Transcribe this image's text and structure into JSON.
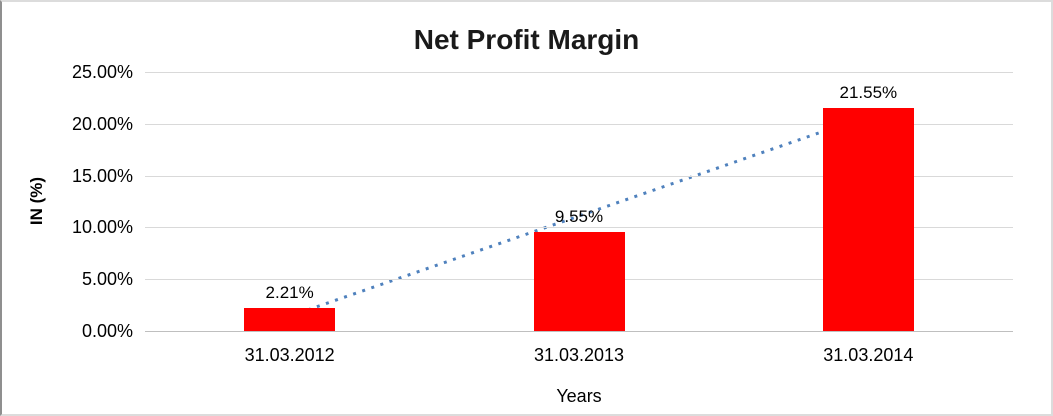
{
  "chart_data": {
    "type": "bar",
    "title": "Net Profit Margin",
    "categories": [
      "31.03.2012",
      "31.03.2013",
      "31.03.2014"
    ],
    "values": [
      2.21,
      9.55,
      21.55
    ],
    "data_labels": [
      "2.21%",
      "9.55%",
      "21.55%"
    ],
    "xlabel": "Years",
    "ylabel": "IN (%)",
    "ylim": [
      0,
      25
    ],
    "ytick_values": [
      0,
      5,
      10,
      15,
      20,
      25
    ],
    "ytick_labels": [
      "0.00%",
      "5.00%",
      "10.00%",
      "15.00%",
      "20.00%",
      "25.00%"
    ],
    "grid": true,
    "legend": "none",
    "trendline": {
      "type": "linear",
      "style": "dotted"
    },
    "colors": {
      "bar": "#FF0000",
      "trendline": "#4F81BD",
      "gridline": "#D9D9D9",
      "axis_line": "#BFBFBF",
      "text": "#000000",
      "title": "#1A1A1A"
    }
  }
}
